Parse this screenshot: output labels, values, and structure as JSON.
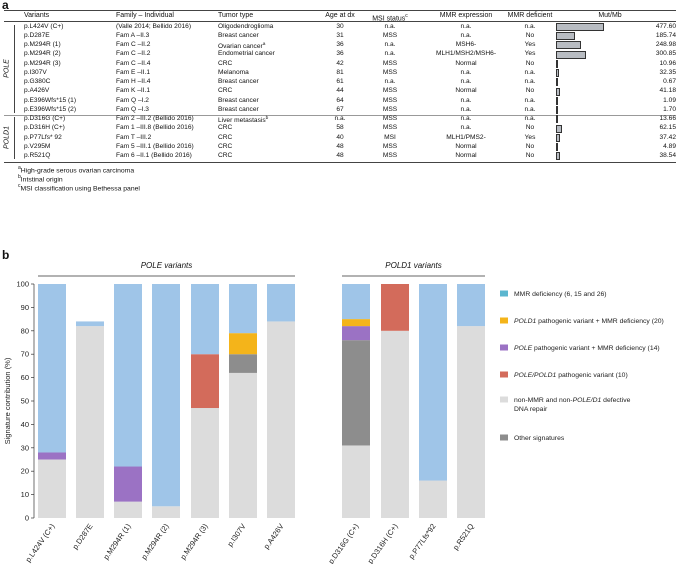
{
  "panel_a": {
    "label": "a",
    "headers": {
      "variants": "Variants",
      "family": "Family – Individual",
      "tumor": "Tumor type",
      "age": "Age at dx",
      "msi": "MSI status",
      "msi_sup": "c",
      "mmr_expr": "MMR expression",
      "mmr_def": "MMR deficient",
      "mut": "Mut/Mb"
    },
    "groups": [
      "POLE",
      "POLD1"
    ],
    "rows": [
      {
        "variant": "p.L424V (C+)",
        "family": "(Valle 2014; Bellido 2016)",
        "tumor": "Oligodendroglioma",
        "tumor_sup": "",
        "age": "30",
        "msi": "n.a.",
        "mmr_expr": "n.a.",
        "mmr_def": "n.a.",
        "mut": "477.60",
        "mut_value": 477.6
      },
      {
        "variant": "p.D287E",
        "family": "Fam A –II.3",
        "tumor": "Breast cancer",
        "tumor_sup": "",
        "age": "31",
        "msi": "MSS",
        "mmr_expr": "n.a.",
        "mmr_def": "No",
        "mut": "185.74",
        "mut_value": 185.74
      },
      {
        "variant": "p.M294R (1)",
        "family": "Fam C –II.2",
        "tumor": "Ovarian cancer",
        "tumor_sup": "a",
        "age": "36",
        "msi": "n.a.",
        "mmr_expr": "MSH6-",
        "mmr_def": "Yes",
        "mut": "248.98",
        "mut_value": 248.98
      },
      {
        "variant": "p.M294R (2)",
        "family": "Fam C –II.2",
        "tumor": "Endometrial cancer",
        "tumor_sup": "",
        "age": "36",
        "msi": "n.a.",
        "mmr_expr": "MLH1/MSH2/MSH6-",
        "mmr_def": "Yes",
        "mut": "300.85",
        "mut_value": 300.85
      },
      {
        "variant": "p.M294R (3)",
        "family": "Fam C –II.4",
        "tumor": "CRC",
        "tumor_sup": "",
        "age": "42",
        "msi": "MSS",
        "mmr_expr": "Normal",
        "mmr_def": "No",
        "mut": "10.96",
        "mut_value": 10.96
      },
      {
        "variant": "p.I307V",
        "family": "Fam E –II.1",
        "tumor": "Melanoma",
        "tumor_sup": "",
        "age": "81",
        "msi": "MSS",
        "mmr_expr": "n.a.",
        "mmr_def": "n.a.",
        "mut": "32.35",
        "mut_value": 32.35
      },
      {
        "variant": "p.G380C",
        "family": "Fam H –II.4",
        "tumor": "Breast cancer",
        "tumor_sup": "",
        "age": "61",
        "msi": "n.a.",
        "mmr_expr": "n.a.",
        "mmr_def": "n.a.",
        "mut": "0.67",
        "mut_value": 0.67
      },
      {
        "variant": "p.A426V",
        "family": "Fam K –II.1",
        "tumor": "CRC",
        "tumor_sup": "",
        "age": "44",
        "msi": "MSS",
        "mmr_expr": "Normal",
        "mmr_def": "No",
        "mut": "41.18",
        "mut_value": 41.18
      },
      {
        "variant": "p.E396Wfs*15 (1)",
        "family": "Fam Q –I.2",
        "tumor": "Breast cancer",
        "tumor_sup": "",
        "age": "64",
        "msi": "MSS",
        "mmr_expr": "n.a.",
        "mmr_def": "n.a.",
        "mut": "1.09",
        "mut_value": 1.09
      },
      {
        "variant": "p.E396Wfs*15 (2)",
        "family": "Fam Q –I.3",
        "tumor": "Breast cancer",
        "tumor_sup": "",
        "age": "67",
        "msi": "MSS",
        "mmr_expr": "n.a.",
        "mmr_def": "n.a.",
        "mut": "1.70",
        "mut_value": 1.7
      },
      {
        "variant": "p.D316G (C+)",
        "family": "Fam 2 –III.2 (Bellido 2016)",
        "tumor": "Liver metastasis",
        "tumor_sup": "b",
        "age": "n.a.",
        "msi": "MSS",
        "mmr_expr": "n.a.",
        "mmr_def": "n.a.",
        "mut": "13.66",
        "mut_value": 13.66
      },
      {
        "variant": "p.D316H (C+)",
        "family": "Fam 1 –III.8 (Bellido 2016)",
        "tumor": "CRC",
        "tumor_sup": "",
        "age": "58",
        "msi": "MSS",
        "mmr_expr": "n.a.",
        "mmr_def": "No",
        "mut": "62.15",
        "mut_value": 62.15
      },
      {
        "variant": "p.P77Lfs* 92",
        "family": "Fam T –III.2",
        "tumor": "CRC",
        "tumor_sup": "",
        "age": "40",
        "msi": "MSI",
        "mmr_expr": "MLH1/PMS2-",
        "mmr_def": "Yes",
        "mut": "37.42",
        "mut_value": 37.42
      },
      {
        "variant": "p.V295M",
        "family": "Fam 5 –III.1 (Bellido 2016)",
        "tumor": "CRC",
        "tumor_sup": "",
        "age": "48",
        "msi": "MSS",
        "mmr_expr": "Normal",
        "mmr_def": "No",
        "mut": "4.89",
        "mut_value": 4.89
      },
      {
        "variant": "p.R521Q",
        "family": "Fam 6 –II.1 (Bellido 2016)",
        "tumor": "CRC",
        "tumor_sup": "",
        "age": "48",
        "msi": "MSS",
        "mmr_expr": "Normal",
        "mmr_def": "No",
        "mut": "38.54",
        "mut_value": 38.54
      }
    ],
    "footnotes": [
      {
        "sup": "a",
        "text": "High-grade serous ovarian carcinoma"
      },
      {
        "sup": "b",
        "text": "Intstinal origin"
      },
      {
        "sup": "c",
        "text": "MSI classification using Bethessa panel"
      }
    ]
  },
  "panel_b": {
    "label": "b",
    "colors": {
      "mmr": "#9fc5e8",
      "pathmmr": "#f4b41a",
      "polemmr": "#9b72c4",
      "path": "#d36b5b",
      "nonmmr": "#dcdcdc",
      "other": "#8d8d8d",
      "legend_mmr": "#5bb6cf"
    }
  },
  "chart_data": {
    "type": "bar",
    "stacked": true,
    "title_left": "POLE variants",
    "title_right": "POLD1 variants",
    "ylabel": "Signature contribution (%)",
    "ylim": [
      0,
      100
    ],
    "yticks": [
      "0",
      "10",
      "20",
      "30",
      "40",
      "50",
      "60",
      "70",
      "80",
      "90",
      "100"
    ],
    "categories": [
      "p.L424V (C+)",
      "p.D287E",
      "p.M294R (1)",
      "p.M294R (2)",
      "p.M294R (3)",
      "p.I307V",
      "p.A426V",
      "p.D316G (C+)",
      "p.D316H (C+)",
      "p.P77Lfs*92",
      "p.R521Q"
    ],
    "groups": [
      {
        "name": "POLE variants",
        "start": 0,
        "count": 7
      },
      {
        "name": "POLD1 variants",
        "start": 7,
        "count": 4
      }
    ],
    "series": [
      {
        "key": "nonmmr",
        "name": "non-MMR and non-POLE/D1 defective DNA repair",
        "values": [
          25,
          82,
          7,
          5,
          47,
          62,
          84,
          31,
          80,
          16,
          82
        ]
      },
      {
        "key": "other",
        "name": "Other signatures",
        "values": [
          0,
          0,
          0,
          0,
          0,
          8,
          0,
          45,
          0,
          0,
          0
        ]
      },
      {
        "key": "path",
        "name": "POLE/POLD1 pathogenic variant (10)",
        "values": [
          0,
          0,
          0,
          0,
          23,
          0,
          0,
          0,
          20,
          0,
          0
        ]
      },
      {
        "key": "polemmr",
        "name": "POLE pathogenic variant + MMR deficiency (14)",
        "values": [
          3,
          0,
          15,
          0,
          0,
          0,
          0,
          6,
          0,
          0,
          0
        ]
      },
      {
        "key": "pathmmr",
        "name": "POLD1 pathogenic variant + MMR deficiency (20)",
        "values": [
          0,
          0,
          0,
          0,
          0,
          9,
          0,
          3,
          0,
          0,
          0
        ]
      },
      {
        "key": "mmr",
        "name": "MMR deficiency (6, 15 and 26)",
        "values": [
          72,
          2,
          78,
          95,
          30,
          21,
          16,
          15,
          0,
          84,
          18
        ]
      }
    ],
    "legend": [
      {
        "key": "mmr",
        "parts": [
          {
            "t": "MMR deficiency (6, 15 and 26)",
            "i": false
          }
        ]
      },
      {
        "key": "pathmmr",
        "parts": [
          {
            "t": "POLD1",
            "i": true
          },
          {
            "t": " pathogenic variant + MMR deficiency (20)",
            "i": false
          }
        ]
      },
      {
        "key": "polemmr",
        "parts": [
          {
            "t": "POLE",
            "i": true
          },
          {
            "t": " pathogenic variant + MMR deficiency (14)",
            "i": false
          }
        ]
      },
      {
        "key": "path",
        "parts": [
          {
            "t": "POLE/POLD1",
            "i": true
          },
          {
            "t": " pathogenic variant (10)",
            "i": false
          }
        ]
      },
      {
        "key": "nonmmr",
        "parts": [
          {
            "t": "non-MMR and non-",
            "i": false
          },
          {
            "t": "POLE/D1",
            "i": true
          },
          {
            "t": " defective",
            "i": false
          }
        ],
        "line2": "DNA repair"
      },
      {
        "key": "other",
        "parts": [
          {
            "t": "Other signatures",
            "i": false
          }
        ]
      }
    ]
  }
}
